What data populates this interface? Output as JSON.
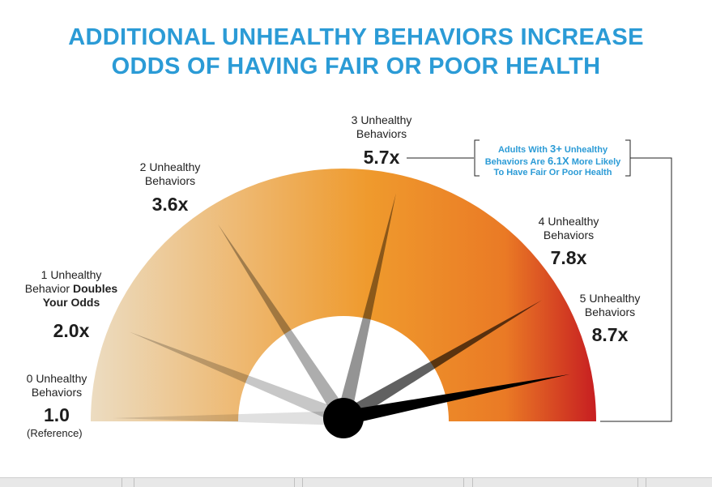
{
  "title_line1": "ADDITIONAL UNHEALTHY BEHAVIORS INCREASE",
  "title_line2": "ODDS OF HAVING FAIR OR POOR HEALTH",
  "labels": {
    "b0_l1": "0 Unhealthy",
    "b0_l2": "Behaviors",
    "b0_val": "1.0",
    "b0_ref": "(Reference)",
    "b1_l1": "1 Unhealthy",
    "b1_l2a": "Behavior ",
    "b1_l2b": "Doubles",
    "b1_l3": "Your Odds",
    "b1_val": "2.0x",
    "b2_l1": "2 Unhealthy",
    "b2_l2": "Behaviors",
    "b2_val": "3.6x",
    "b3_l1": "3 Unhealthy",
    "b3_l2": "Behaviors",
    "b3_val": "5.7x",
    "b4_l1": "4 Unhealthy",
    "b4_l2": "Behaviors",
    "b4_val": "7.8x",
    "b5_l1": "5 Unhealthy",
    "b5_l2": "Behaviors",
    "b5_val": "8.7x"
  },
  "callout": {
    "p1": "Adults With ",
    "hl1": "3+",
    "p2": " Unhealthy",
    "p3": "Behaviors Are ",
    "hl2": "6.1X",
    "p4": " More Likely",
    "p5": "To Have Fair Or Poor Health"
  },
  "colors": {
    "title": "#2b9bd6",
    "gauge_light": "#ecdcc1",
    "gauge_mid": "#ef9a2d",
    "gauge_dark": "#c71e21"
  },
  "chart_data": {
    "type": "gauge",
    "categories": [
      "0 Unhealthy Behaviors",
      "1 Unhealthy Behavior",
      "2 Unhealthy Behaviors",
      "3 Unhealthy Behaviors",
      "4 Unhealthy Behaviors",
      "5 Unhealthy Behaviors"
    ],
    "values": [
      1.0,
      2.0,
      3.6,
      5.7,
      7.8,
      8.7
    ],
    "ylim": [
      1.0,
      9.2
    ],
    "needle_opacity": [
      0.12,
      0.22,
      0.32,
      0.42,
      0.62,
      1.0
    ]
  }
}
